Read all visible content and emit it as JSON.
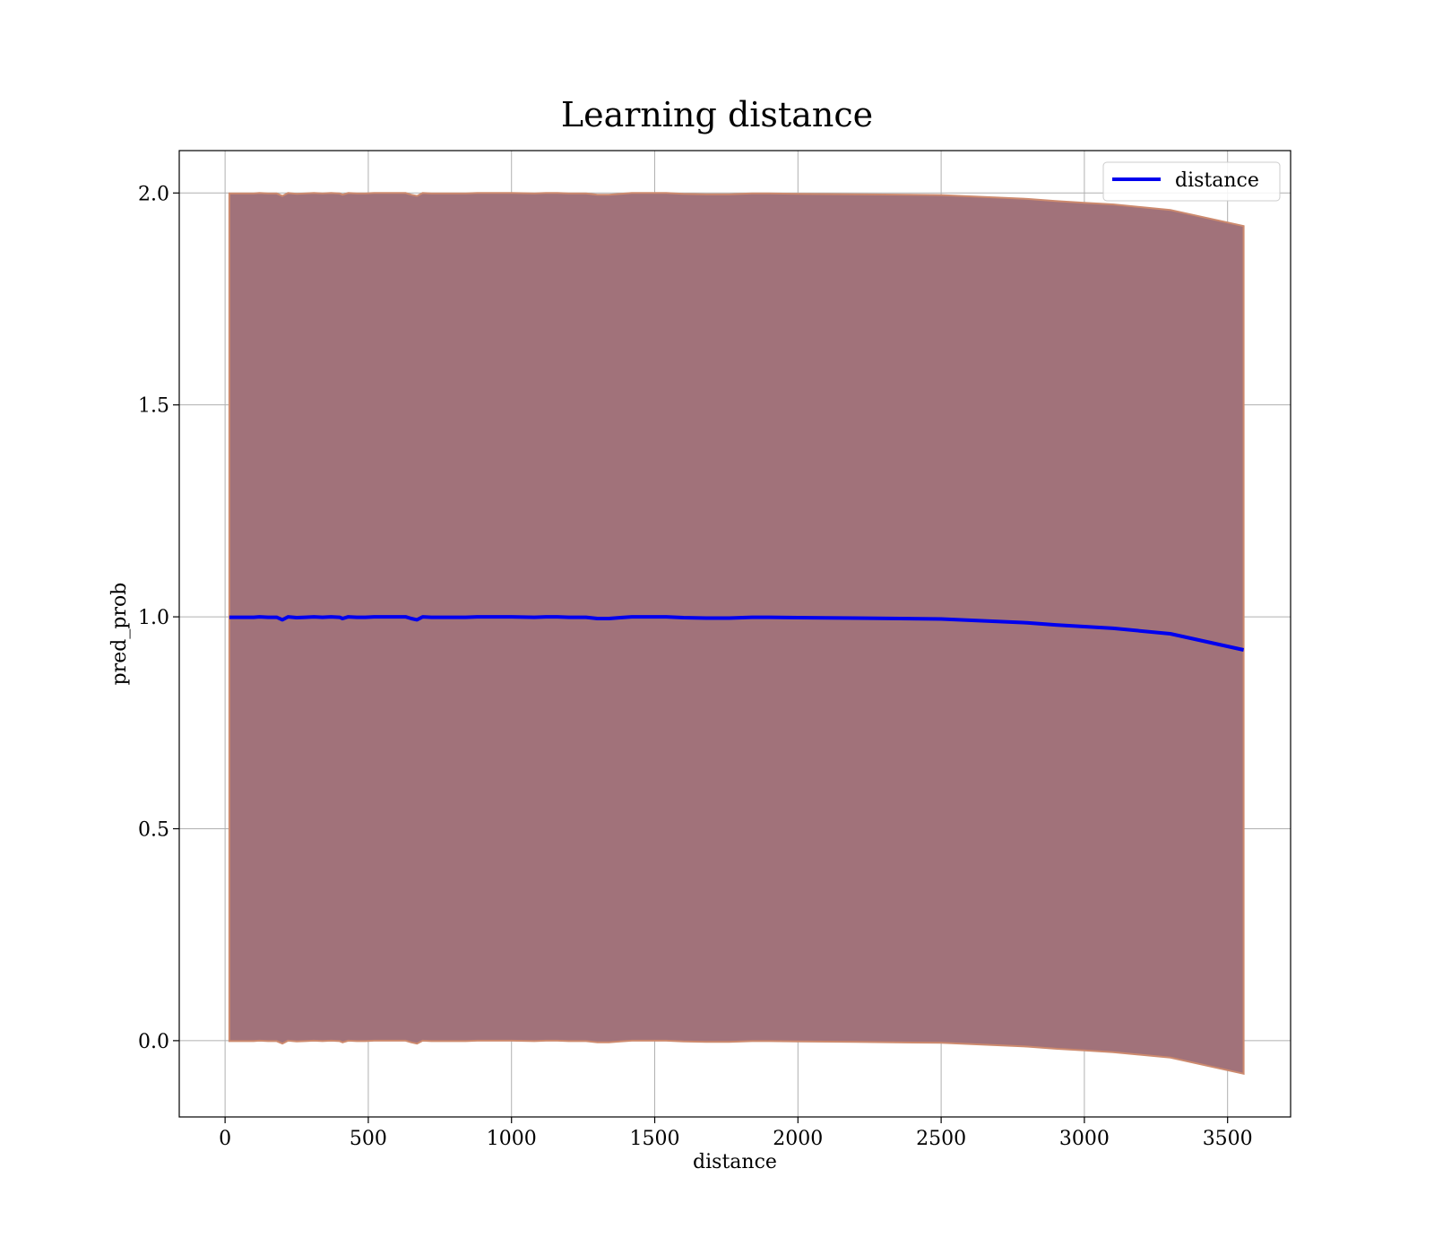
{
  "chart_data": {
    "type": "line",
    "title": "Learning distance",
    "xlabel": "distance",
    "ylabel": "pred_prob",
    "xlim": [
      -160,
      3720
    ],
    "ylim": [
      -0.18,
      2.1
    ],
    "xticks": [
      0,
      500,
      1000,
      1500,
      2000,
      2500,
      3000,
      3500
    ],
    "yticks": [
      0.0,
      0.5,
      1.0,
      1.5,
      2.0
    ],
    "xtick_labels": [
      "0",
      "500",
      "1000",
      "1500",
      "2000",
      "2500",
      "3000",
      "3500"
    ],
    "ytick_labels": [
      "0.0",
      "0.5",
      "1.0",
      "1.5",
      "2.0"
    ],
    "grid": true,
    "legend": {
      "placement": "top-right",
      "entries": [
        "distance"
      ]
    },
    "colors": {
      "line": "#0000ee",
      "band_fill": "#a1727a",
      "band_edge": "#cd8a6e",
      "grid": "#b0b0b0"
    },
    "series": [
      {
        "name": "distance",
        "x": [
          15,
          60,
          80,
          100,
          120,
          150,
          180,
          200,
          220,
          250,
          280,
          310,
          340,
          370,
          400,
          410,
          430,
          460,
          490,
          520,
          560,
          600,
          630,
          650,
          670,
          690,
          720,
          760,
          800,
          840,
          880,
          920,
          1000,
          1080,
          1120,
          1160,
          1200,
          1260,
          1300,
          1340,
          1380,
          1420,
          1480,
          1540,
          1600,
          1680,
          1760,
          1840,
          1900,
          2000,
          2200,
          2500,
          2800,
          2900,
          3000,
          3100,
          3300,
          3556
        ],
        "y": [
          0.999,
          0.999,
          0.999,
          0.999,
          1.0,
          0.999,
          0.999,
          0.993,
          1.0,
          0.998,
          0.999,
          1.0,
          0.999,
          1.0,
          0.999,
          0.996,
          1.0,
          0.999,
          0.999,
          1.0,
          1.0,
          1.0,
          1.0,
          0.996,
          0.993,
          1.0,
          0.999,
          0.999,
          0.999,
          0.999,
          1.0,
          1.0,
          1.0,
          0.999,
          1.0,
          1.0,
          0.999,
          0.999,
          0.996,
          0.996,
          0.998,
          1.0,
          1.0,
          1.0,
          0.998,
          0.997,
          0.997,
          0.999,
          0.999,
          0.998,
          0.997,
          0.995,
          0.986,
          0.981,
          0.977,
          0.973,
          0.96,
          0.922
        ],
        "band_upper": [
          1.999,
          1.999,
          1.999,
          1.999,
          2.0,
          1.999,
          1.999,
          1.993,
          2.0,
          1.998,
          1.999,
          2.0,
          1.999,
          2.0,
          1.999,
          1.996,
          2.0,
          1.999,
          1.999,
          2.0,
          2.0,
          2.0,
          2.0,
          1.996,
          1.993,
          2.0,
          1.999,
          1.999,
          1.999,
          1.999,
          2.0,
          2.0,
          2.0,
          1.999,
          2.0,
          2.0,
          1.999,
          1.999,
          1.996,
          1.996,
          1.998,
          2.0,
          2.0,
          2.0,
          1.998,
          1.997,
          1.997,
          1.999,
          1.999,
          1.998,
          1.997,
          1.995,
          1.986,
          1.981,
          1.977,
          1.973,
          1.96,
          1.922
        ],
        "band_lower": [
          -0.001,
          -0.001,
          -0.001,
          -0.001,
          0.0,
          -0.001,
          -0.001,
          -0.007,
          0.0,
          -0.002,
          -0.001,
          0.0,
          -0.001,
          0.0,
          -0.001,
          -0.004,
          0.0,
          -0.001,
          -0.001,
          0.0,
          0.0,
          0.0,
          0.0,
          -0.004,
          -0.007,
          0.0,
          -0.001,
          -0.001,
          -0.001,
          -0.001,
          0.0,
          0.0,
          0.0,
          -0.001,
          0.0,
          0.0,
          -0.001,
          -0.001,
          -0.004,
          -0.004,
          -0.002,
          0.0,
          0.0,
          0.0,
          -0.002,
          -0.003,
          -0.003,
          -0.001,
          -0.001,
          -0.002,
          -0.003,
          -0.005,
          -0.014,
          -0.019,
          -0.023,
          -0.027,
          -0.04,
          -0.078
        ]
      }
    ]
  }
}
